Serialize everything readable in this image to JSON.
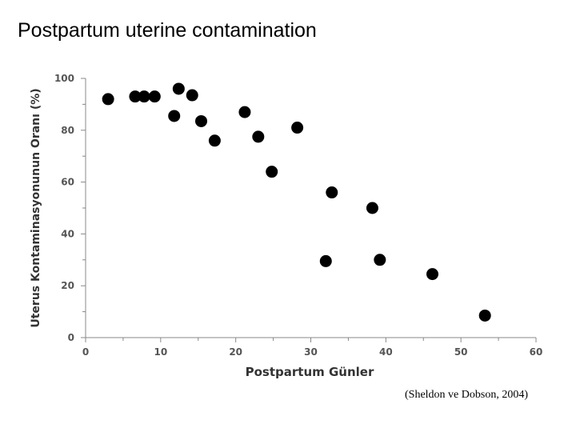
{
  "slide": {
    "title": "Postpartum uterine contamination",
    "citation": "(Sheldon ve Dobson, 2004)"
  },
  "chart_data": {
    "type": "scatter",
    "xlabel": "Postpartum Günler",
    "ylabel": "Uterus Kontaminasyonunun Oranı (%)",
    "xlim": [
      0,
      60
    ],
    "ylim": [
      0,
      100
    ],
    "xticks": [
      0,
      10,
      20,
      30,
      40,
      50,
      60
    ],
    "yticks": [
      0,
      20,
      40,
      60,
      80,
      100
    ],
    "grid": false,
    "point_color": "#000000",
    "axis_color": "#888888",
    "points": [
      {
        "x": 3,
        "y": 92
      },
      {
        "x": 6.6,
        "y": 93
      },
      {
        "x": 7.8,
        "y": 93
      },
      {
        "x": 9.2,
        "y": 93
      },
      {
        "x": 11.8,
        "y": 85.5
      },
      {
        "x": 12.4,
        "y": 96
      },
      {
        "x": 14.2,
        "y": 93.5
      },
      {
        "x": 15.4,
        "y": 83.5
      },
      {
        "x": 17.2,
        "y": 76
      },
      {
        "x": 21.2,
        "y": 87
      },
      {
        "x": 23,
        "y": 77.5
      },
      {
        "x": 24.8,
        "y": 64
      },
      {
        "x": 28.2,
        "y": 81
      },
      {
        "x": 32,
        "y": 29.5
      },
      {
        "x": 32.8,
        "y": 56
      },
      {
        "x": 38.2,
        "y": 50
      },
      {
        "x": 39.2,
        "y": 30
      },
      {
        "x": 46.2,
        "y": 24.5
      },
      {
        "x": 53.2,
        "y": 8.5
      }
    ]
  }
}
